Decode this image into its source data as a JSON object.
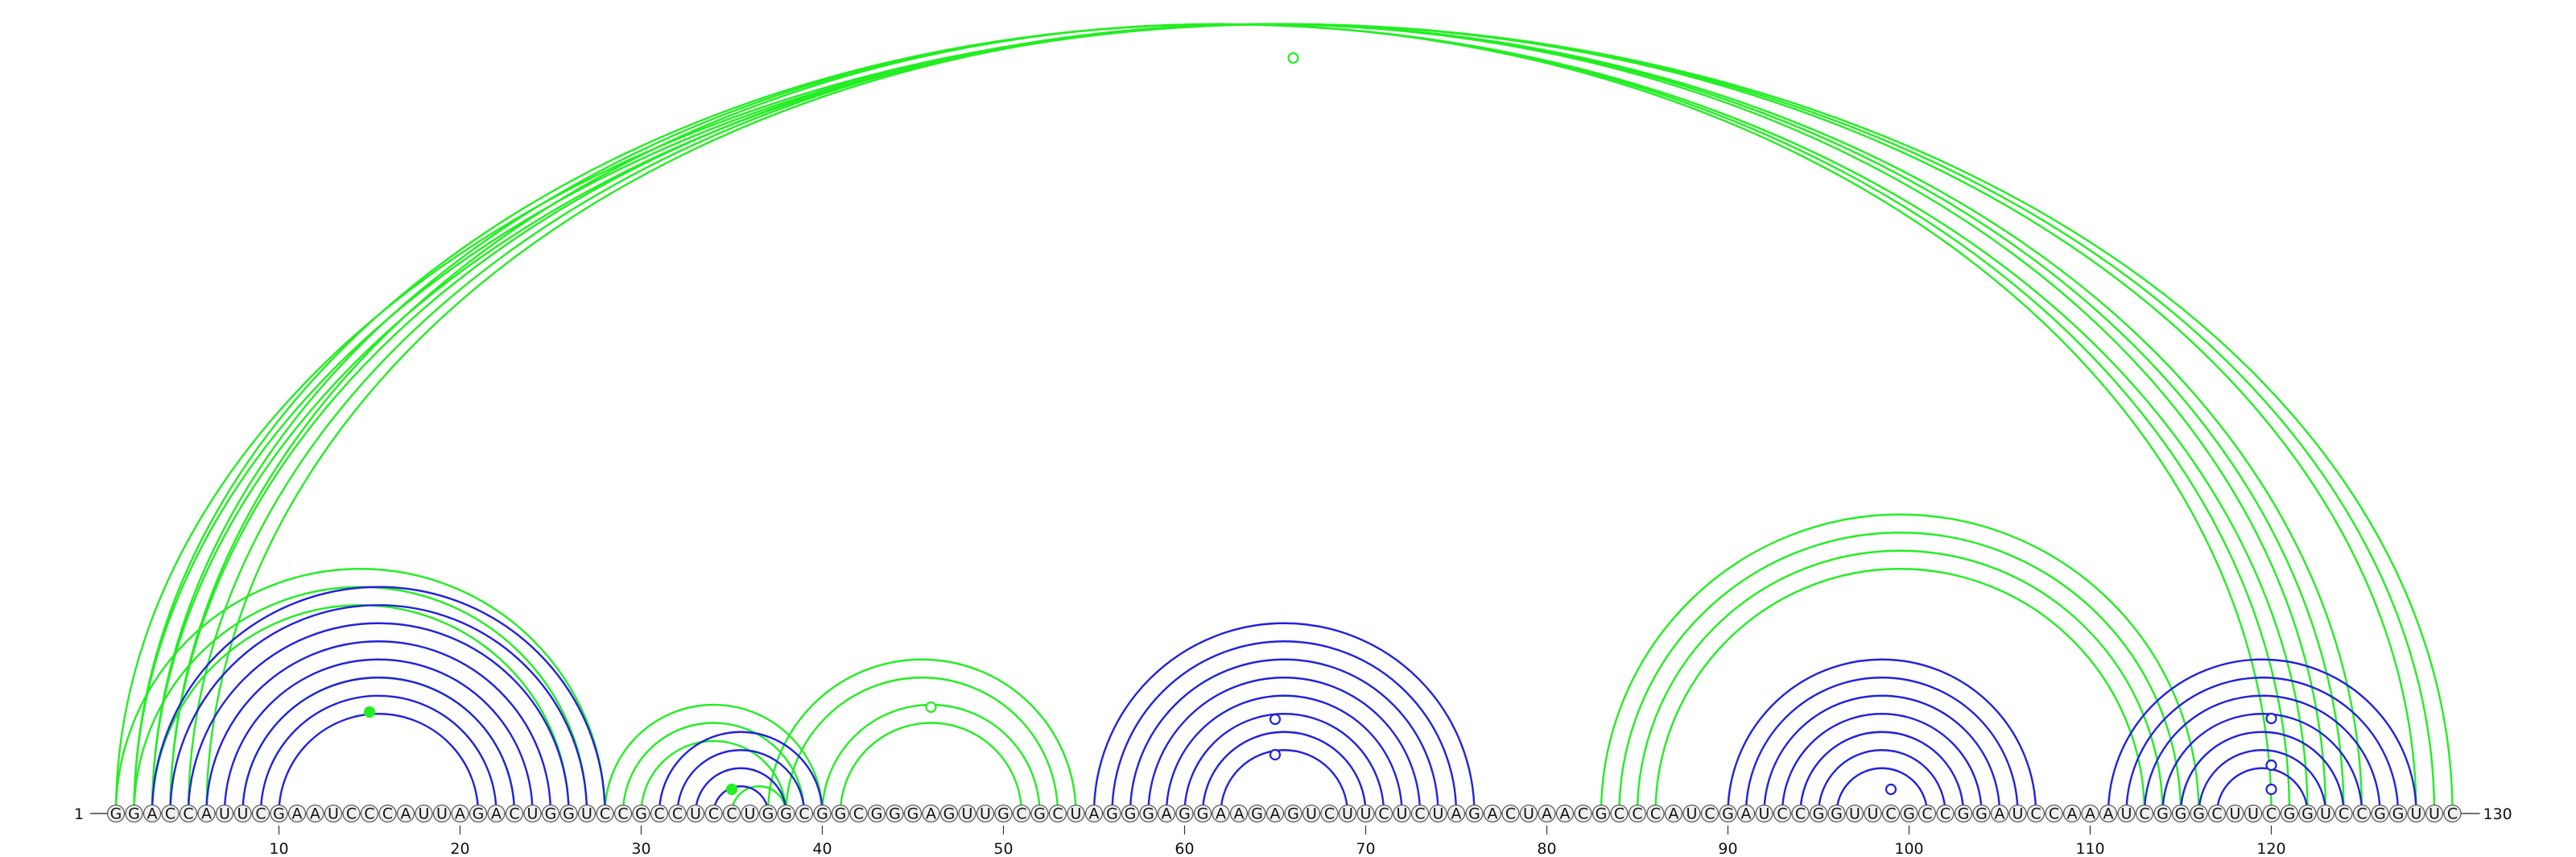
{
  "diagram": {
    "type": "rna-arc-diagram",
    "start_label": "1",
    "end_label": "130",
    "sequence": "GGACCAUUCGAAUCCCAUUAGACUGGUCCGCCUCCUGGCGGCGGGAGUUGCGCUAGGGAGGAAGAGUCUUCUCUAGACUAACGCCCAUCGAUCCGGUUCGCCGGAUCCAAAUCGGGCUUCGGUCCGGUUC",
    "ticks": [
      10,
      20,
      30,
      40,
      50,
      60,
      70,
      80,
      90,
      100,
      110,
      120
    ],
    "colors": {
      "blue_arcs": "#2222dd",
      "green_arcs": "#22ee22",
      "nucleotide_fill": "#f0f0f0",
      "nucleotide_stroke": "#555555"
    },
    "blue_helices": [
      {
        "i": 3,
        "j": 28,
        "n": 8
      },
      {
        "i": 31,
        "j": 40,
        "n": 4
      },
      {
        "i": 55,
        "j": 76,
        "n": 8
      },
      {
        "i": 90,
        "j": 107,
        "n": 7
      },
      {
        "i": 111,
        "j": 128,
        "n": 7
      }
    ],
    "green_helices": [
      {
        "i": 1,
        "j": 130,
        "n": 3
      },
      {
        "i": 2,
        "j": 122,
        "n": 3
      },
      {
        "i": 4,
        "j": 125,
        "n": 3
      },
      {
        "i": 1,
        "j": 28,
        "n": 3
      },
      {
        "i": 8,
        "j": 23,
        "n": 1
      },
      {
        "i": 28,
        "j": 40,
        "n": 3
      },
      {
        "i": 35,
        "j": 38,
        "n": 1
      },
      {
        "i": 37,
        "j": 54,
        "n": 2
      },
      {
        "i": 40,
        "j": 52,
        "n": 2
      },
      {
        "i": 83,
        "j": 116,
        "n": 4
      }
    ],
    "markers": [
      {
        "pos": 66,
        "color": "green",
        "filled": false
      },
      {
        "pos": 15,
        "color": "green",
        "filled": true
      },
      {
        "pos": 35,
        "color": "green",
        "filled": true
      },
      {
        "pos": 46,
        "color": "green",
        "filled": false
      },
      {
        "pos": 65,
        "color": "blue",
        "filled": false
      },
      {
        "pos": 65,
        "color": "blue",
        "filled": false
      },
      {
        "pos": 99,
        "color": "blue",
        "filled": false
      },
      {
        "pos": 120,
        "color": "blue",
        "filled": false
      },
      {
        "pos": 120,
        "color": "blue",
        "filled": false
      },
      {
        "pos": 120,
        "color": "blue",
        "filled": false
      }
    ]
  }
}
